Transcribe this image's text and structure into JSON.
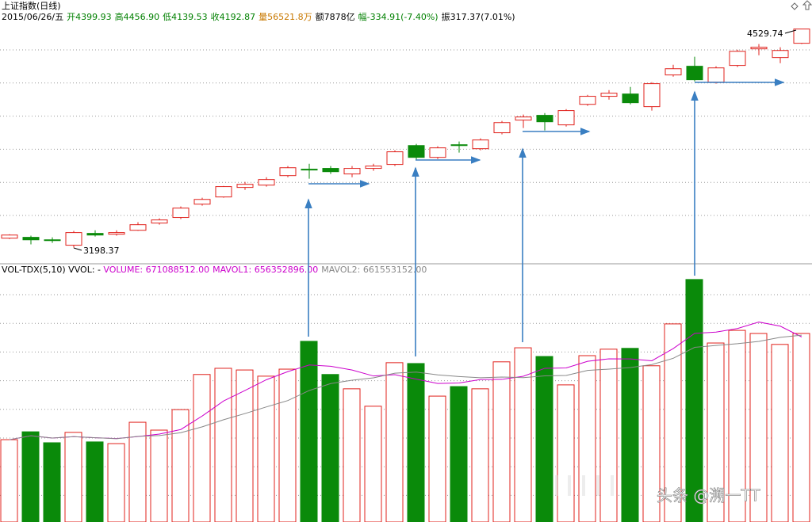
{
  "header": {
    "title": "上证指数(日线)",
    "items": [
      {
        "text": "2015/06/26/五",
        "color": "#000000"
      },
      {
        "text": "开4399.93",
        "color": "#008000"
      },
      {
        "text": "高4456.90",
        "color": "#008000"
      },
      {
        "text": "低4139.53",
        "color": "#008000"
      },
      {
        "text": "收4192.87",
        "color": "#008000"
      },
      {
        "text": "量56521.8万",
        "color": "#c87800"
      },
      {
        "text": "额7878亿",
        "color": "#000000"
      },
      {
        "text": "幅-334.91(-7.40%)",
        "color": "#008000"
      },
      {
        "text": "振317.37(7.01%)",
        "color": "#000000"
      }
    ]
  },
  "watermark": "头条 @溯一TT",
  "chart_data": [
    {
      "type": "candlestick",
      "up_color": "#e0201b",
      "down_color": "#0a8a0a",
      "grid": true,
      "ylim": [
        3100,
        4610
      ],
      "annotations": [
        "4529.74",
        "3198.37"
      ],
      "open": [
        3256,
        3261,
        3246,
        3213,
        3285,
        3280,
        3304,
        3348,
        3382,
        3463,
        3507,
        3565,
        3579,
        3637,
        3676,
        3681,
        3647,
        3681,
        3705,
        3820,
        3748,
        3825,
        3801,
        3898,
        3975,
        4004,
        3946,
        4071,
        4120,
        4134,
        4057,
        4250,
        4303,
        4206,
        4308,
        4409,
        4356,
        4443
      ],
      "high": [
        3280,
        3271,
        3261,
        3300,
        3304,
        3304,
        3353,
        3377,
        3449,
        3502,
        3574,
        3599,
        3627,
        3695,
        3709,
        3695,
        3695,
        3709,
        3791,
        3830,
        3816,
        3845,
        3864,
        3970,
        4009,
        4018,
        4042,
        4129,
        4158,
        4177,
        4206,
        4312,
        4361,
        4303,
        4404,
        4438,
        4419,
        4529.74
      ],
      "low": [
        3251,
        3218,
        3227,
        3198.37,
        3266,
        3271,
        3300,
        3338,
        3372,
        3454,
        3502,
        3550,
        3570,
        3627,
        3618,
        3647,
        3627,
        3666,
        3695,
        3734,
        3738,
        3777,
        3791,
        3888,
        3927,
        3912,
        3936,
        4062,
        4100,
        4071,
        4033,
        4240,
        4211,
        4197,
        4298,
        4370,
        4322,
        4438
      ],
      "close": [
        3275,
        3246,
        3242,
        3290,
        3275,
        3290,
        3338,
        3367,
        3439,
        3492,
        3570,
        3584,
        3613,
        3685,
        3671,
        3661,
        3681,
        3695,
        3782,
        3748,
        3806,
        3820,
        3854,
        3960,
        3994,
        3965,
        4033,
        4120,
        4139,
        4081,
        4197,
        4288,
        4221,
        4293,
        4394,
        4419,
        4399,
        4529.74
      ]
    },
    {
      "type": "bar",
      "grid": true,
      "ylim": [
        0,
        919
      ],
      "legend_items": [
        {
          "text": "VOL-TDX(5,10)  VVOL: -",
          "color": "#000000"
        },
        {
          "text": "VOLUME: 671088512.00",
          "color": "#cc00cc"
        },
        {
          "text": "MAVOL1: 656352896.00",
          "color": "#cc00cc"
        },
        {
          "text": "MAVOL2: 661553152.00",
          "color": "#888888"
        }
      ],
      "ma": [
        {
          "period": 5,
          "color": "#cc00cc"
        },
        {
          "period": 10,
          "color": "#888888"
        }
      ],
      "values": [
        293,
        321,
        282,
        319,
        285,
        279,
        355,
        327,
        400,
        525,
        547,
        541,
        519,
        544,
        643,
        525,
        474,
        412,
        567,
        564,
        448,
        482,
        474,
        570,
        620,
        589,
        488,
        592,
        615,
        618,
        556,
        705,
        863,
        637,
        682,
        671,
        632,
        671
      ]
    }
  ]
}
